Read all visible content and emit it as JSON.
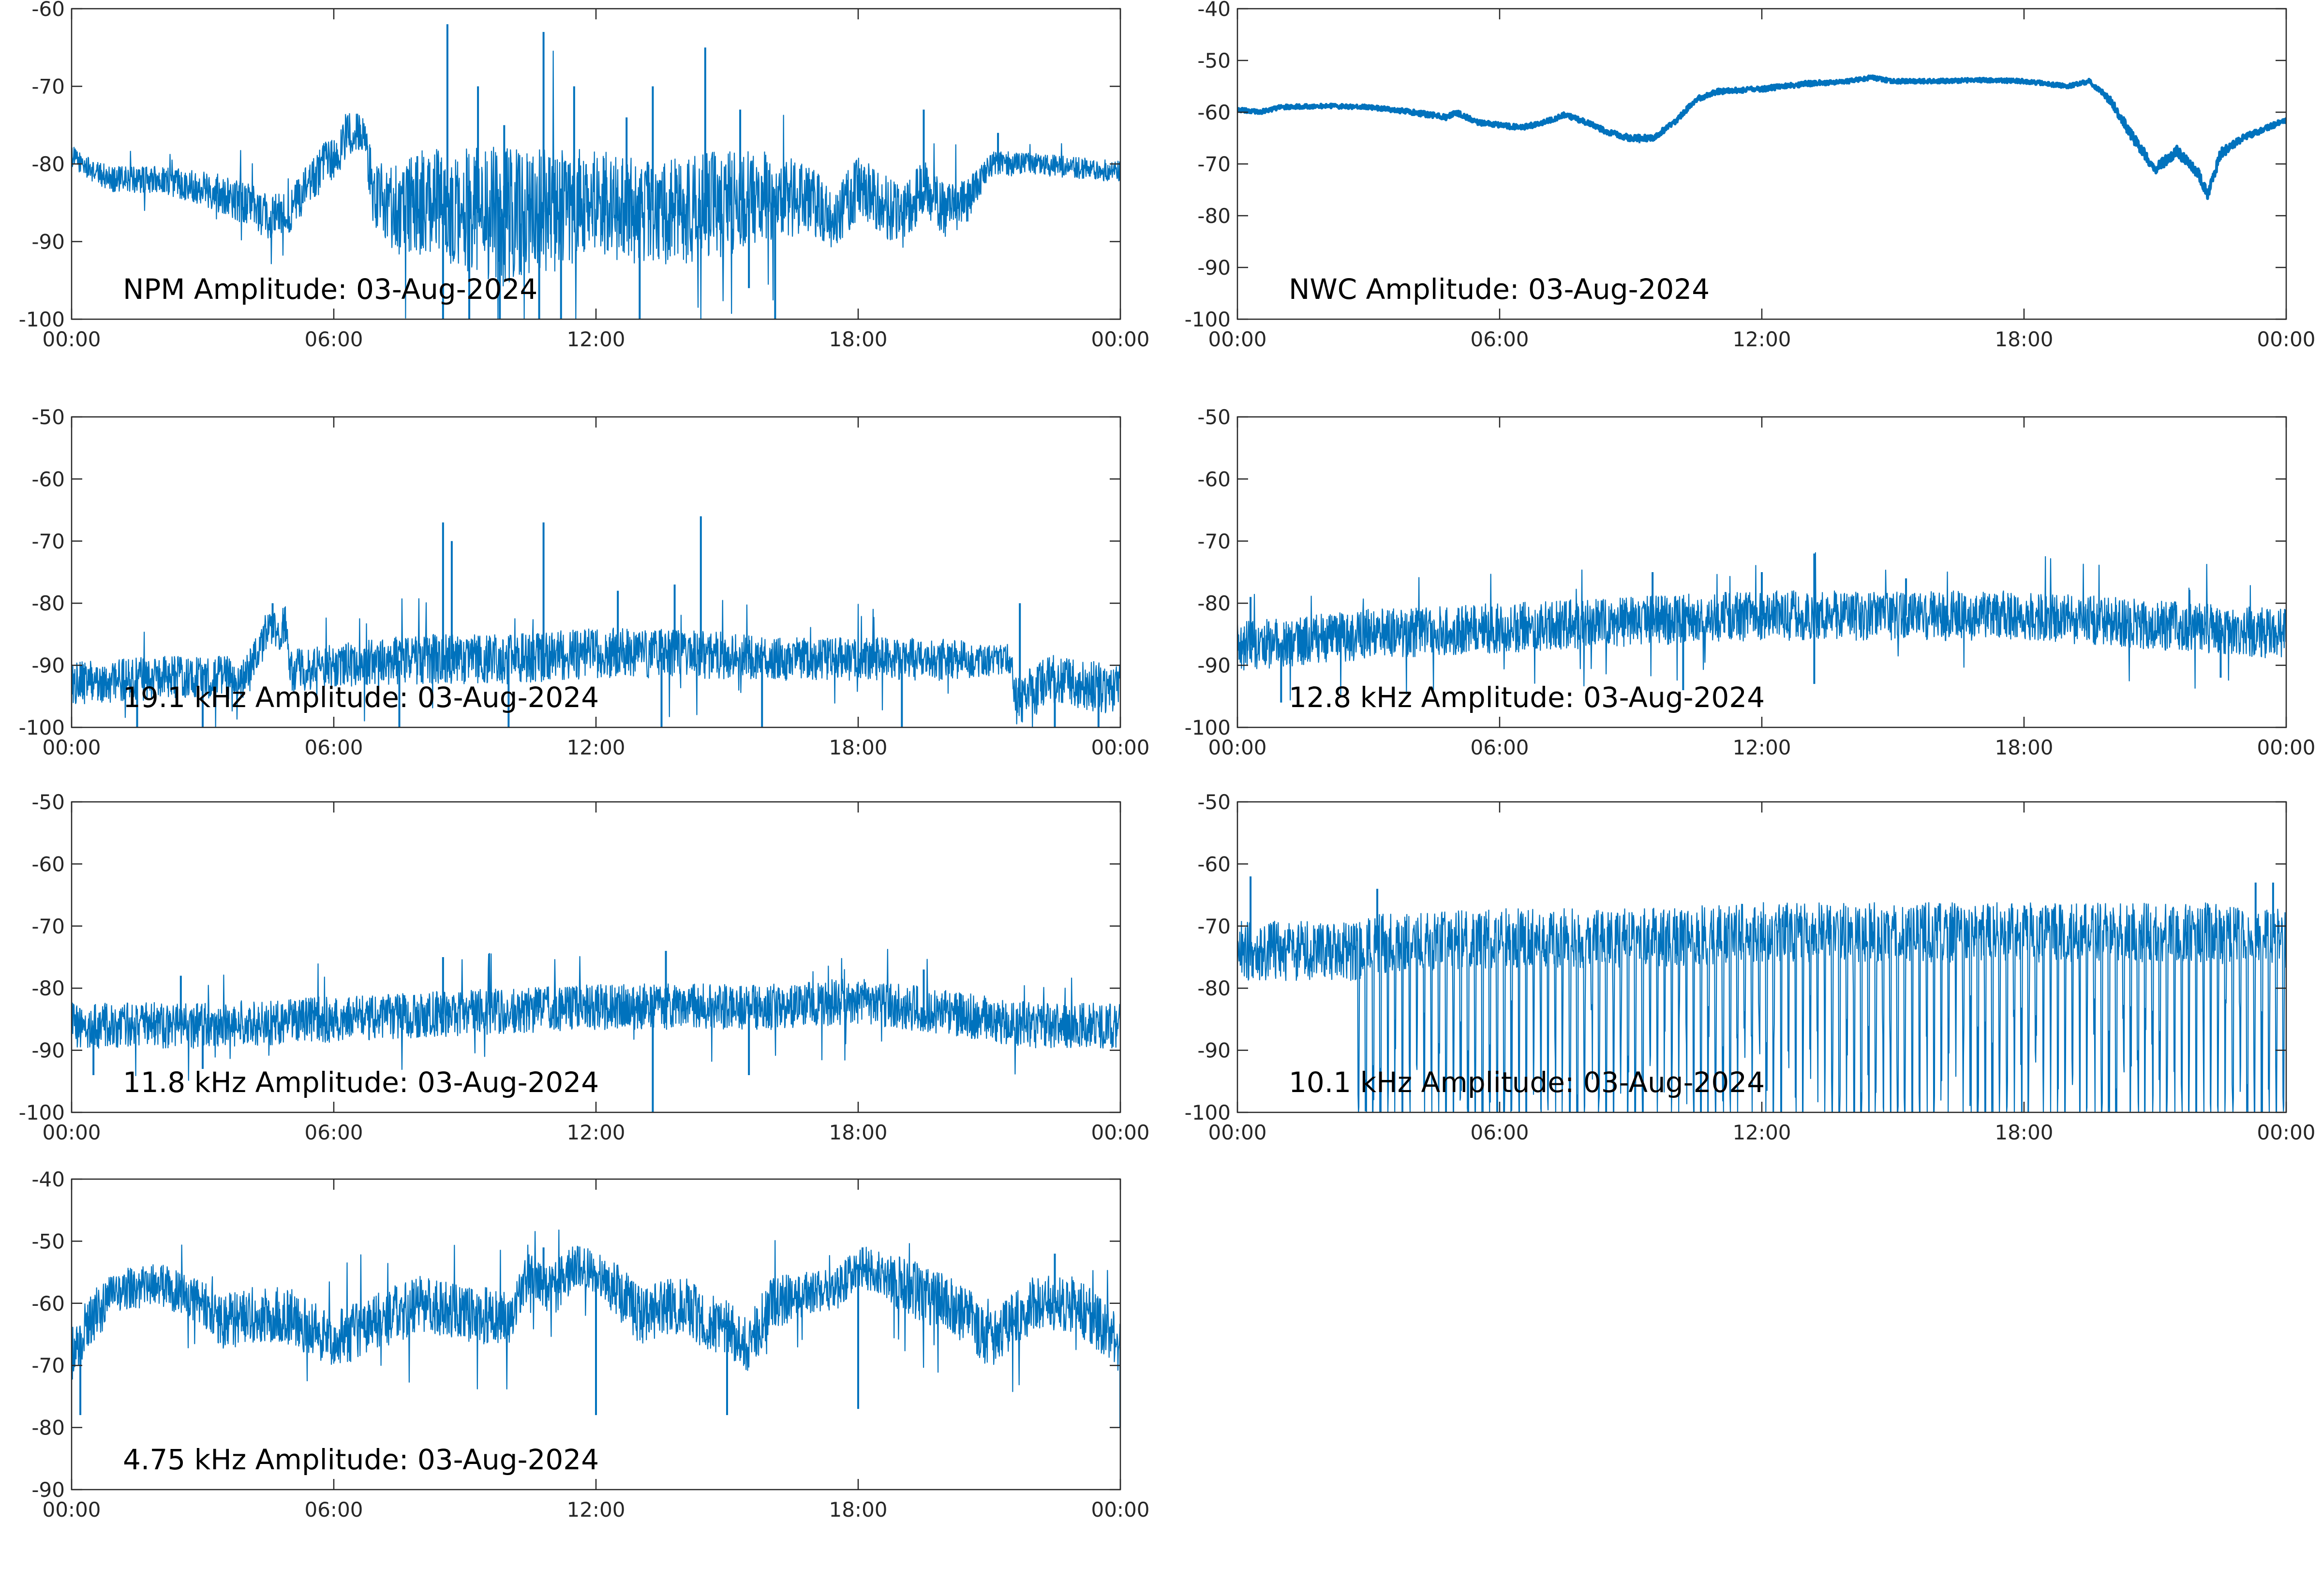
{
  "figure": {
    "line_color": "#0072BD",
    "x_tick_labels": [
      "00:00",
      "06:00",
      "12:00",
      "18:00",
      "00:00"
    ]
  },
  "chart_data": [
    {
      "type": "line",
      "title": "NPM Amplitude: 03-Aug-2024",
      "xlabel": "",
      "ylabel": "",
      "xlim": [
        "00:00",
        "24:00"
      ],
      "ylim": [
        -100,
        -60
      ],
      "y_ticks": [
        -60,
        -70,
        -80,
        -90,
        -100
      ],
      "grid": false,
      "series": [
        {
          "style": "noisy",
          "x_hours": [
            0,
            0.5,
            1,
            2,
            3,
            4,
            4.5,
            5,
            5.8,
            6.1,
            6.3,
            6.7,
            6.9,
            7.5,
            8,
            9,
            10,
            11,
            12,
            13,
            14,
            15,
            16,
            17,
            17.5,
            18,
            19,
            19.5,
            20,
            20.5,
            21,
            22,
            23,
            24
          ],
          "center": [
            -79,
            -81,
            -82,
            -82,
            -83,
            -85,
            -87,
            -86,
            -80,
            -79,
            -76,
            -76,
            -84,
            -86,
            -85,
            -86,
            -87,
            -86,
            -85,
            -86,
            -86,
            -85,
            -84,
            -85,
            -87,
            -83,
            -87,
            -83,
            -86,
            -85,
            -80,
            -80,
            -80.5,
            -81
          ],
          "spread": [
            1.2,
            1.2,
            1.5,
            1.5,
            2,
            2.5,
            2.5,
            2.5,
            2.5,
            2.5,
            2.5,
            2,
            4,
            5,
            6,
            7,
            8,
            7,
            6,
            6,
            6,
            6,
            5,
            4,
            3.5,
            3.5,
            3.5,
            3,
            3,
            2.5,
            1.5,
            1.2,
            1.2,
            1.2
          ],
          "spikes_up": [
            [
              8.6,
              -62
            ],
            [
              10.8,
              -63
            ],
            [
              14.5,
              -65
            ],
            [
              9.3,
              -70
            ],
            [
              11.5,
              -70
            ],
            [
              13.3,
              -70
            ],
            [
              15.3,
              -73
            ],
            [
              19.5,
              -73
            ],
            [
              21.2,
              -76
            ],
            [
              9.9,
              -75
            ],
            [
              12.7,
              -74
            ]
          ],
          "spikes_down": [
            [
              9.8,
              -100
            ],
            [
              10.7,
              -100
            ],
            [
              13.0,
              -100
            ],
            [
              8.5,
              -100
            ],
            [
              9.1,
              -100
            ],
            [
              11.2,
              -100
            ],
            [
              15.5,
              -96
            ],
            [
              16.1,
              -100
            ]
          ]
        }
      ]
    },
    {
      "type": "line",
      "title": "NWC Amplitude: 03-Aug-2024",
      "xlabel": "",
      "ylabel": "",
      "xlim": [
        "00:00",
        "24:00"
      ],
      "ylim": [
        -100,
        -40
      ],
      "y_ticks": [
        -40,
        -50,
        -60,
        -70,
        -80,
        -90,
        -100
      ],
      "grid": false,
      "series": [
        {
          "style": "smooth",
          "x_hours": [
            0,
            0.5,
            1,
            2,
            3,
            4,
            4.8,
            5,
            5.5,
            6.5,
            7,
            7.5,
            8,
            8.5,
            9,
            9.5,
            10,
            10.5,
            11,
            12,
            13,
            14,
            14.5,
            15,
            16,
            17,
            18,
            19,
            19.5,
            20,
            20.5,
            21,
            21.5,
            22,
            22.2,
            22.5,
            23,
            24
          ],
          "center": [
            -59.5,
            -60,
            -59,
            -58.8,
            -59,
            -60,
            -61,
            -60,
            -62,
            -63,
            -62,
            -60.5,
            -62,
            -64,
            -65,
            -65,
            -62,
            -57.5,
            -56,
            -55.5,
            -54.5,
            -54,
            -53.3,
            -54,
            -54,
            -53.8,
            -54,
            -55,
            -54,
            -58,
            -65,
            -71,
            -67.5,
            -72,
            -76,
            -68,
            -65,
            -61.5
          ],
          "spread": [
            0.4,
            0.4,
            0.4,
            0.4,
            0.4,
            0.5,
            0.5,
            0.5,
            0.5,
            0.5,
            0.5,
            0.5,
            0.5,
            0.6,
            0.6,
            0.6,
            0.5,
            0.5,
            0.5,
            0.5,
            0.5,
            0.4,
            0.4,
            0.4,
            0.4,
            0.4,
            0.4,
            0.4,
            0.4,
            0.8,
            1,
            1,
            1,
            1,
            1,
            1,
            0.6,
            0.5
          ],
          "spikes_up": [],
          "spikes_down": [
            [
              9.2,
              -66
            ]
          ]
        }
      ]
    },
    {
      "type": "line",
      "title": "19.1 kHz Amplitude: 03-Aug-2024",
      "xlabel": "",
      "ylabel": "",
      "xlim": [
        "00:00",
        "24:00"
      ],
      "ylim": [
        -100,
        -50
      ],
      "y_ticks": [
        -50,
        -60,
        -70,
        -80,
        -90,
        -100
      ],
      "grid": false,
      "series": [
        {
          "style": "noisy",
          "x_hours": [
            0,
            2,
            4,
            4.5,
            4.9,
            5,
            6,
            8,
            10,
            12,
            14,
            16,
            18,
            20,
            21.5,
            21.6,
            22.5,
            23,
            24
          ],
          "center": [
            -93,
            -92,
            -92,
            -84,
            -84,
            -91,
            -90,
            -89,
            -89,
            -88,
            -88,
            -89,
            -89,
            -89,
            -89,
            -96,
            -92,
            -93,
            -94
          ],
          "spread": [
            3,
            3,
            3,
            3,
            3,
            3,
            3,
            3.5,
            3.5,
            3.5,
            3.5,
            3,
            3,
            3,
            2,
            3.5,
            3.5,
            3.5,
            3.5
          ],
          "spikes_up": [
            [
              8.5,
              -67
            ],
            [
              10.8,
              -67
            ],
            [
              14.4,
              -66
            ],
            [
              4.6,
              -80
            ],
            [
              8.7,
              -70
            ],
            [
              12.5,
              -78
            ],
            [
              13.8,
              -77
            ],
            [
              21.7,
              -80
            ]
          ],
          "spikes_down": [
            [
              1.5,
              -100
            ],
            [
              3,
              -100
            ],
            [
              7.5,
              -100
            ],
            [
              10,
              -100
            ],
            [
              13.5,
              -100
            ],
            [
              15.8,
              -100
            ],
            [
              19,
              -100
            ],
            [
              22.5,
              -100
            ],
            [
              23.5,
              -100
            ]
          ]
        }
      ]
    },
    {
      "type": "line",
      "title": "12.8 kHz Amplitude: 03-Aug-2024",
      "xlabel": "",
      "ylabel": "",
      "xlim": [
        "00:00",
        "24:00"
      ],
      "ylim": [
        -100,
        -50
      ],
      "y_ticks": [
        -50,
        -60,
        -70,
        -80,
        -90,
        -100
      ],
      "grid": false,
      "series": [
        {
          "style": "noisy",
          "x_hours": [
            0,
            3,
            6,
            9,
            12,
            14,
            16,
            18,
            20,
            22,
            24
          ],
          "center": [
            -87,
            -85,
            -84,
            -83,
            -82,
            -82,
            -82,
            -82,
            -83,
            -84,
            -85
          ],
          "spread": [
            3.5,
            3.5,
            3.5,
            3.5,
            3.5,
            3.5,
            3.5,
            3.5,
            3.5,
            3.5,
            3.5
          ],
          "spikes_up": [
            [
              13.2,
              -72
            ],
            [
              9.5,
              -75
            ],
            [
              12.0,
              -75
            ],
            [
              15.3,
              -76
            ],
            [
              0.3,
              -79
            ]
          ],
          "spikes_down": [
            [
              1,
              -96
            ],
            [
              10.2,
              -94
            ],
            [
              13.2,
              -93
            ],
            [
              22.5,
              -92
            ]
          ]
        }
      ]
    },
    {
      "type": "line",
      "title": "11.8 kHz Amplitude: 03-Aug-2024",
      "xlabel": "",
      "ylabel": "",
      "xlim": [
        "00:00",
        "24:00"
      ],
      "ylim": [
        -100,
        -50
      ],
      "y_ticks": [
        -50,
        -60,
        -70,
        -80,
        -90,
        -100
      ],
      "grid": false,
      "series": [
        {
          "style": "noisy",
          "x_hours": [
            0,
            3,
            6,
            9,
            12,
            14,
            16,
            18,
            19,
            20,
            22,
            24
          ],
          "center": [
            -86,
            -86,
            -85,
            -84,
            -83,
            -83,
            -83,
            -82,
            -83,
            -84,
            -86,
            -86
          ],
          "spread": [
            3.2,
            3.2,
            3.2,
            3.2,
            3.2,
            3.2,
            3.2,
            3.2,
            3.2,
            3.2,
            3.2,
            3.2
          ],
          "spikes_up": [
            [
              8.5,
              -75
            ],
            [
              13.6,
              -74
            ],
            [
              19.5,
              -77
            ],
            [
              2.5,
              -78
            ]
          ],
          "spikes_down": [
            [
              13.3,
              -100
            ],
            [
              3,
              -93
            ],
            [
              15.5,
              -94
            ],
            [
              0.5,
              -94
            ]
          ]
        }
      ]
    },
    {
      "type": "line",
      "title": "10.1 kHz Amplitude: 03-Aug-2024",
      "xlabel": "",
      "ylabel": "",
      "xlim": [
        "00:00",
        "24:00"
      ],
      "ylim": [
        -100,
        -50
      ],
      "y_ticks": [
        -50,
        -60,
        -70,
        -80,
        -90,
        -100
      ],
      "grid": false,
      "series": [
        {
          "style": "pulsed",
          "x_hours": [
            0,
            2.7,
            3,
            6,
            9,
            12,
            15,
            18,
            20,
            22,
            24
          ],
          "center": [
            -74,
            -74,
            -73,
            -72,
            -72,
            -71,
            -71,
            -71,
            -71,
            -71,
            -72
          ],
          "spread": [
            3,
            3,
            3,
            3,
            3,
            3,
            3,
            3,
            3,
            3,
            3
          ],
          "spikes_up": [
            [
              0.3,
              -62
            ],
            [
              23.3,
              -63
            ],
            [
              23.7,
              -63
            ],
            [
              3.2,
              -64
            ]
          ],
          "spikes_down": []
        }
      ]
    },
    {
      "type": "line",
      "title": "4.75 kHz Amplitude: 03-Aug-2024",
      "xlabel": "",
      "ylabel": "",
      "xlim": [
        "00:00",
        "24:00"
      ],
      "ylim": [
        -90,
        -40
      ],
      "y_ticks": [
        -40,
        -50,
        -60,
        -70,
        -80,
        -90
      ],
      "grid": false,
      "series": [
        {
          "style": "noisy",
          "x_hours": [
            0,
            0.5,
            1,
            2,
            3,
            3.5,
            4,
            5,
            6,
            7,
            8,
            9,
            10,
            10.5,
            11,
            11.5,
            12,
            12.5,
            13,
            14,
            14.5,
            15,
            15.5,
            16,
            17,
            17.5,
            18,
            18.5,
            19,
            20,
            20.5,
            21,
            22,
            23,
            24
          ],
          "center": [
            -68,
            -62,
            -58,
            -57,
            -60,
            -63,
            -62,
            -62,
            -66,
            -63,
            -60,
            -62,
            -62,
            -55,
            -58,
            -54,
            -55,
            -58,
            -62,
            -60,
            -63,
            -64,
            -67,
            -60,
            -58,
            -58,
            -54,
            -55,
            -57,
            -60,
            -62,
            -66,
            -60,
            -60,
            -67
          ],
          "spread": [
            4,
            4,
            3,
            3,
            3,
            4,
            4,
            4,
            4,
            4,
            4,
            4,
            4,
            3,
            4,
            3,
            3,
            4,
            4,
            4,
            4,
            4,
            4,
            4,
            3,
            3,
            3,
            3,
            4,
            4,
            4,
            4,
            4,
            4,
            4
          ],
          "spikes_up": [
            [
              10.8,
              -51
            ],
            [
              18.1,
              -51
            ],
            [
              22.5,
              -52
            ]
          ],
          "spikes_down": [
            [
              12.0,
              -78
            ],
            [
              15.0,
              -78
            ],
            [
              18.0,
              -77
            ],
            [
              0.2,
              -78
            ],
            [
              24,
              -80
            ]
          ]
        }
      ]
    }
  ]
}
